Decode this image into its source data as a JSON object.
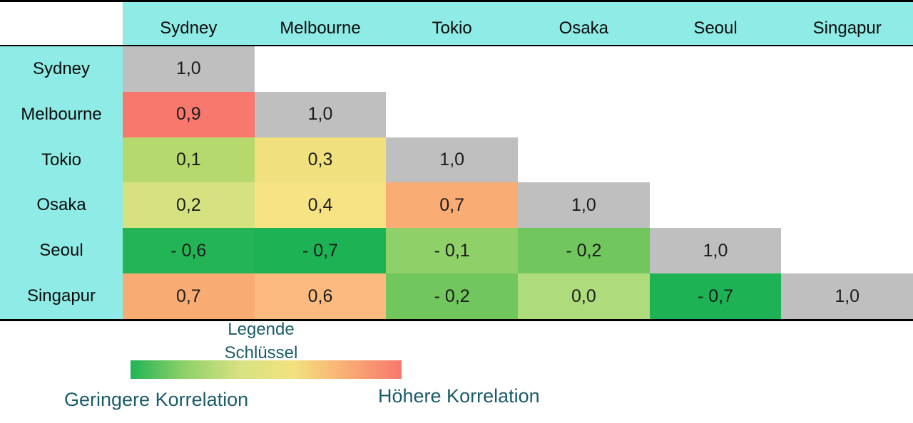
{
  "matrix": {
    "columns": [
      "Sydney",
      "Melbourne",
      "Tokio",
      "Osaka",
      "Seoul",
      "Singapur"
    ],
    "rows": [
      {
        "label": "Sydney",
        "cells": [
          {
            "text": "1,0",
            "color": "#BFBFBF"
          }
        ]
      },
      {
        "label": "Melbourne",
        "cells": [
          {
            "text": "0,9",
            "color": "#F8786D"
          },
          {
            "text": "1,0",
            "color": "#BFBFBF"
          }
        ]
      },
      {
        "label": "Tokio",
        "cells": [
          {
            "text": "0,1",
            "color": "#B5D96C"
          },
          {
            "text": "0,3",
            "color": "#F0E07E"
          },
          {
            "text": "1,0",
            "color": "#BFBFBF"
          }
        ]
      },
      {
        "label": "Osaka",
        "cells": [
          {
            "text": "0,2",
            "color": "#D6E282"
          },
          {
            "text": "0,4",
            "color": "#F6E384"
          },
          {
            "text": "0,7",
            "color": "#F9AC74"
          },
          {
            "text": "1,0",
            "color": "#BFBFBF"
          }
        ]
      },
      {
        "label": "Seoul",
        "cells": [
          {
            "text": "- 0,6",
            "color": "#23B456"
          },
          {
            "text": "- 0,7",
            "color": "#1DB253"
          },
          {
            "text": "- 0,1",
            "color": "#8FD069"
          },
          {
            "text": "- 0,2",
            "color": "#72C65E"
          },
          {
            "text": "1,0",
            "color": "#BFBFBF"
          }
        ]
      },
      {
        "label": "Singapur",
        "cells": [
          {
            "text": "0,7",
            "color": "#F9AB74"
          },
          {
            "text": "0,6",
            "color": "#FBBA80"
          },
          {
            "text": "- 0,2",
            "color": "#72C65E"
          },
          {
            "text": "0,0",
            "color": "#AEDB7C"
          },
          {
            "text": "- 0,7",
            "color": "#1DB253"
          },
          {
            "text": "1,0",
            "color": "#BFBFBF"
          }
        ]
      }
    ]
  },
  "legend": {
    "title_line1": "Legende",
    "title_line2": "Schlüssel",
    "left_label": "Geringere Korrelation",
    "right_label": "Höhere Korrelation",
    "gradient": [
      "#22B456",
      "#8FD069",
      "#D6E282",
      "#F3E27F",
      "#F9AC74",
      "#F8786D"
    ]
  },
  "colors": {
    "header_bg": "#8EEBE5",
    "diagonal_bg": "#BFBFBF",
    "legend_text": "#1A5C68",
    "border": "#000000"
  },
  "chart_data": {
    "type": "heatmap",
    "categories": [
      "Sydney",
      "Melbourne",
      "Tokio",
      "Osaka",
      "Seoul",
      "Singapur"
    ],
    "matrix": [
      [
        1.0
      ],
      [
        0.9,
        1.0
      ],
      [
        0.1,
        0.3,
        1.0
      ],
      [
        0.2,
        0.4,
        0.7,
        1.0
      ],
      [
        -0.6,
        -0.7,
        -0.1,
        -0.2,
        1.0
      ],
      [
        0.7,
        0.6,
        -0.2,
        0.0,
        -0.7,
        1.0
      ]
    ],
    "value_range": [
      -1,
      1
    ],
    "colorscale": "green-yellow-red",
    "legend_title": "Legende Schlüssel",
    "legend_low": "Geringere Korrelation",
    "legend_high": "Höhere Korrelation",
    "decimal_separator": ",",
    "shape": "lower-triangle-with-diagonal"
  }
}
